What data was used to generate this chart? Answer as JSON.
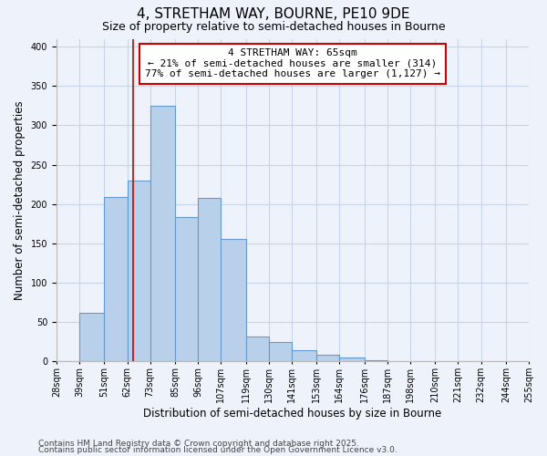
{
  "title": "4, STRETHAM WAY, BOURNE, PE10 9DE",
  "subtitle": "Size of property relative to semi-detached houses in Bourne",
  "xlabel": "Distribution of semi-detached houses by size in Bourne",
  "ylabel": "Number of semi-detached properties",
  "bar_edges": [
    28,
    39,
    51,
    62,
    73,
    85,
    96,
    107,
    119,
    130,
    141,
    153,
    164,
    176,
    187,
    198,
    210,
    221,
    232,
    244,
    255
  ],
  "bar_heights": [
    0,
    62,
    209,
    230,
    325,
    184,
    208,
    156,
    32,
    25,
    14,
    8,
    5,
    2,
    0,
    0,
    0,
    0,
    0,
    0
  ],
  "tick_labels": [
    "28sqm",
    "39sqm",
    "51sqm",
    "62sqm",
    "73sqm",
    "85sqm",
    "96sqm",
    "107sqm",
    "119sqm",
    "130sqm",
    "141sqm",
    "153sqm",
    "164sqm",
    "176sqm",
    "187sqm",
    "198sqm",
    "210sqm",
    "221sqm",
    "232sqm",
    "244sqm",
    "255sqm"
  ],
  "bar_color": "#b8d0ea",
  "bar_edge_color": "#6699cc",
  "property_line_x": 65,
  "property_line_color": "#cc0000",
  "annotation_title": "4 STRETHAM WAY: 65sqm",
  "annotation_line1": "← 21% of semi-detached houses are smaller (314)",
  "annotation_line2": "77% of semi-detached houses are larger (1,127) →",
  "annotation_box_color": "#ffffff",
  "annotation_box_edge_color": "#cc0000",
  "ylim": [
    0,
    410
  ],
  "yticks": [
    0,
    50,
    100,
    150,
    200,
    250,
    300,
    350,
    400
  ],
  "footnote1": "Contains HM Land Registry data © Crown copyright and database right 2025.",
  "footnote2": "Contains public sector information licensed under the Open Government Licence v3.0.",
  "background_color": "#eef2fb",
  "grid_color": "#c8d4e8",
  "title_fontsize": 11,
  "subtitle_fontsize": 9,
  "axis_label_fontsize": 8.5,
  "tick_fontsize": 7,
  "annotation_fontsize": 8,
  "footnote_fontsize": 6.5
}
